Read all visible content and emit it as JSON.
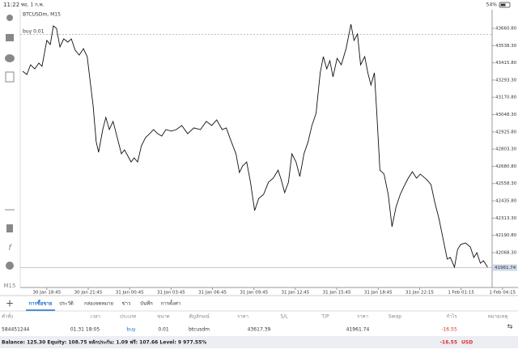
{
  "status_bar": {
    "time": "11:22",
    "date": "พฤ. 1 ก.พ.",
    "battery": "54%"
  },
  "chart": {
    "symbol": "BTCUSDm, M15",
    "order_label": "buy 0.01",
    "timeframe": "M15",
    "chart_data": {
      "type": "line",
      "color": "#111111",
      "x": [
        0.0,
        1.2,
        2.3,
        3.5,
        4.7,
        5.6,
        7.0,
        8.0,
        8.9,
        9.8,
        10.8,
        11.9,
        13.1,
        14.1,
        15.2,
        16.4,
        17.6,
        18.7,
        19.4,
        20.4,
        21.3,
        22.0,
        23.2,
        24.1,
        25.1,
        26.2,
        27.4,
        28.6,
        29.5,
        30.4,
        31.4,
        32.3,
        33.3,
        34.4,
        35.6,
        36.8,
        37.9,
        39.1,
        40.3,
        41.5,
        43.1,
        44.5,
        46.1,
        47.8,
        49.6,
        51.5,
        53.2,
        54.8,
        56.2,
        57.8,
        59.0,
        60.0,
        60.9,
        61.8,
        62.8,
        63.7,
        64.9,
        66.0,
        67.2,
        68.4,
        69.8,
        71.2,
        72.6,
        74.0,
        74.9,
        75.9,
        77.0,
        78.0,
        79.2,
        80.3,
        81.5,
        82.7,
        83.8,
        85.0,
        86.2,
        87.1,
        88.1,
        89.0,
        89.9,
        91.1,
        92.3,
        93.7,
        95.1,
        96.0,
        97.0,
        97.9,
        99.1,
        100.0,
        100.9,
        101.9,
        102.6,
        103.5,
        104.7,
        105.9,
        107.0,
        108.2,
        109.4,
        110.5,
        111.7,
        112.9,
        114.1,
        115.2,
        117.1,
        118.3,
        119.4,
        120.6,
        121.8,
        123.0,
        123.9,
        125.1,
        126.0,
        126.9,
        128.3,
        129.7,
        130.7,
        131.6,
        132.6,
        133.5,
        134.7
      ],
      "values": [
        43356,
        43333,
        43402,
        43373,
        43414,
        43391,
        43575,
        43546,
        43678,
        43661,
        43529,
        43586,
        43563,
        43586,
        43506,
        43471,
        43517,
        43460,
        43316,
        43115,
        42856,
        42781,
        42942,
        43028,
        42942,
        43000,
        42885,
        42770,
        42798,
        42758,
        42712,
        42741,
        42712,
        42827,
        42885,
        42913,
        42942,
        42913,
        42896,
        42942,
        42931,
        42942,
        42971,
        42913,
        42954,
        42942,
        43000,
        42971,
        43011,
        42942,
        42954,
        42885,
        42827,
        42770,
        42637,
        42683,
        42712,
        42568,
        42367,
        42453,
        42482,
        42568,
        42597,
        42654,
        42586,
        42494,
        42568,
        42770,
        42712,
        42609,
        42770,
        42856,
        42971,
        43057,
        43345,
        43460,
        43373,
        43431,
        43316,
        43448,
        43402,
        43517,
        43690,
        43575,
        43621,
        43402,
        43460,
        43345,
        43258,
        43345,
        43057,
        42654,
        42626,
        42482,
        42252,
        42396,
        42482,
        42540,
        42597,
        42643,
        42597,
        42626,
        42586,
        42551,
        42425,
        42310,
        42166,
        42022,
        42034,
        41965,
        42091,
        42126,
        42137,
        42108,
        42034,
        42068,
        41993,
        42011,
        41965
      ],
      "xlim": [
        0,
        136
      ],
      "ylim": [
        41838,
        43793
      ],
      "xticks": [
        {
          "value": 7,
          "label": "30 Jan 18:45"
        },
        {
          "value": 19,
          "label": "30 Jan 21:45"
        },
        {
          "value": 31,
          "label": "31 Jan 00:45"
        },
        {
          "value": 43,
          "label": "31 Jan 03:45"
        },
        {
          "value": 55,
          "label": "31 Jan 06:45"
        },
        {
          "value": 67,
          "label": "31 Jan 09:45"
        },
        {
          "value": 79,
          "label": "31 Jan 12:45"
        },
        {
          "value": 91,
          "label": "31 Jan 15:45"
        },
        {
          "value": 103,
          "label": "31 Jan 18:45"
        },
        {
          "value": 115,
          "label": "31 Jan 22:15"
        },
        {
          "value": 127,
          "label": "1 Feb 01:15"
        },
        {
          "value": 139,
          "label": "1 Feb 04:15"
        }
      ],
      "yticks": [
        {
          "value": 43660.8,
          "label": "43660.80"
        },
        {
          "value": 43538.3,
          "label": "43538.30"
        },
        {
          "value": 43415.8,
          "label": "43415.80"
        },
        {
          "value": 43293.3,
          "label": "43293.30"
        },
        {
          "value": 43170.8,
          "label": "43170.80"
        },
        {
          "value": 43048.3,
          "label": "43048.30"
        },
        {
          "value": 42925.8,
          "label": "42925.80"
        },
        {
          "value": 42803.3,
          "label": "42803.30"
        },
        {
          "value": 42680.8,
          "label": "42680.80"
        },
        {
          "value": 42558.3,
          "label": "42558.30"
        },
        {
          "value": 42435.8,
          "label": "42435.80"
        },
        {
          "value": 42313.3,
          "label": "42313.30"
        },
        {
          "value": 42190.8,
          "label": "42190.80"
        },
        {
          "value": 42068.3,
          "label": "42068.30"
        }
      ],
      "buy_price": 43617.39,
      "current_price": 41961.74
    }
  },
  "tabs": [
    "การซื้อขาย",
    "ประวัติ",
    "กล่องจดหมาย",
    "ข่าว",
    "บันทึก",
    "การตั้งค่า"
  ],
  "table": {
    "headers": [
      "คำสั่ง",
      "เวลา",
      "ประเภท",
      "ขนาด",
      "สัญลักษณ์",
      "ราคา",
      "S/L",
      "T/P",
      "ราคา",
      "Swap",
      "กำไร",
      "หมายเหตุ"
    ],
    "row": {
      "order": "584451244",
      "time": "01.31 18:05",
      "type": "buy",
      "volume": "0.01",
      "symbol": "btcusdm",
      "open_price": "43617.39",
      "price": "41961.74",
      "profit": "-16.55"
    }
  },
  "balance_bar": {
    "summary": "Balance: 125.30 Equity: 108.75 หลักประกัน: 1.09 ฟรี: 107.66 Level: 9 977.55%",
    "profit": "-16.55",
    "currency": "USD"
  }
}
